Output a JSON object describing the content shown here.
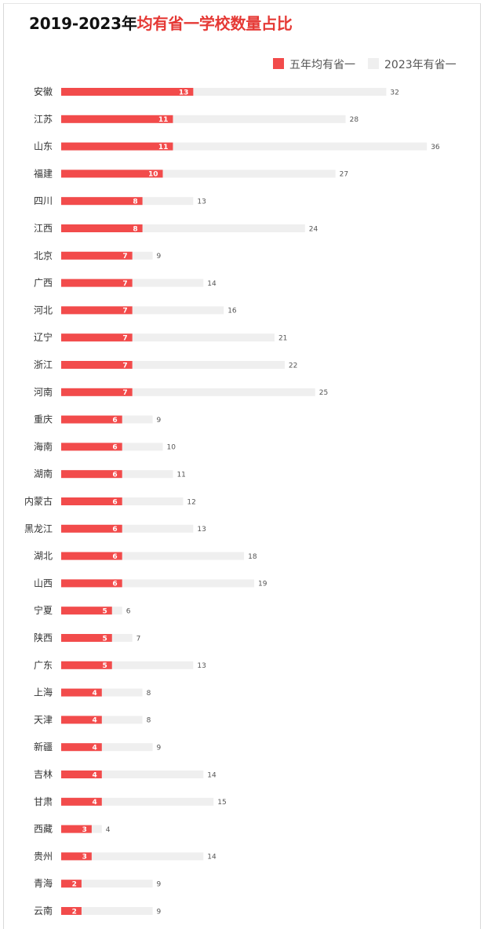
{
  "title": {
    "part1": "2019-2023年",
    "part2": "均有省一学校数量占比"
  },
  "legend": {
    "five_year": "五年均有省一",
    "year_2023": "2023年有省一"
  },
  "colors": {
    "five_year": "#f24b4b",
    "year_2023": "#efefef"
  },
  "chart_data": {
    "type": "bar",
    "orientation": "horizontal",
    "stacking": "overlay",
    "legend_position": "top-right",
    "grid": false,
    "xlim": [
      0,
      36
    ],
    "categories": [
      "安徽",
      "江苏",
      "山东",
      "福建",
      "四川",
      "江西",
      "北京",
      "广西",
      "河北",
      "辽宁",
      "浙江",
      "河南",
      "重庆",
      "海南",
      "湖南",
      "内蒙古",
      "黑龙江",
      "湖北",
      "山西",
      "宁夏",
      "陕西",
      "广东",
      "上海",
      "天津",
      "新疆",
      "吉林",
      "甘肃",
      "西藏",
      "贵州",
      "青海",
      "云南"
    ],
    "series": [
      {
        "name": "五年均有省一",
        "values": [
          13,
          11,
          11,
          10,
          8,
          8,
          7,
          7,
          7,
          7,
          7,
          7,
          6,
          6,
          6,
          6,
          6,
          6,
          6,
          5,
          5,
          5,
          4,
          4,
          4,
          4,
          4,
          3,
          3,
          2,
          2
        ]
      },
      {
        "name": "2023年有省一",
        "values": [
          32,
          28,
          36,
          27,
          13,
          24,
          9,
          14,
          16,
          21,
          22,
          25,
          9,
          10,
          11,
          12,
          13,
          18,
          19,
          6,
          7,
          13,
          8,
          8,
          9,
          14,
          15,
          4,
          14,
          9,
          9
        ]
      }
    ]
  }
}
